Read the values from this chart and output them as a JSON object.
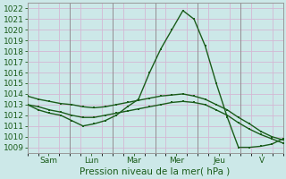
{
  "bg_color": "#cce8e8",
  "grid_color": "#d4b8d4",
  "line_color": "#1a5c1a",
  "ylim": [
    1008.5,
    1022.5
  ],
  "yticks": [
    1009,
    1010,
    1011,
    1012,
    1013,
    1014,
    1015,
    1016,
    1017,
    1018,
    1019,
    1020,
    1021,
    1022
  ],
  "xlabel": "Pression niveau de la mer( hPa )",
  "xlabel_fontsize": 7.5,
  "day_labels": [
    "Sam",
    "Lun",
    "Mar",
    "Mer",
    "Jeu",
    "V"
  ],
  "tick_fontsize": 6.5,
  "marker_size": 2.0,
  "line_width": 1.0,
  "line1_y": [
    1013.0,
    1012.5,
    1012.2,
    1012.0,
    1011.5,
    1011.0,
    1011.2,
    1011.5,
    1012.0,
    1012.8,
    1013.5,
    1016.0,
    1018.2,
    1020.0,
    1021.8,
    1021.0,
    1018.5,
    1015.0,
    1011.8,
    1009.0,
    1009.0,
    1009.1,
    1009.3,
    1009.8
  ],
  "line2_y": [
    1013.8,
    1013.5,
    1013.3,
    1013.1,
    1013.0,
    1012.8,
    1012.7,
    1012.8,
    1013.0,
    1013.2,
    1013.4,
    1013.6,
    1013.8,
    1013.9,
    1014.0,
    1013.8,
    1013.5,
    1013.0,
    1012.5,
    1011.8,
    1011.2,
    1010.5,
    1010.0,
    1009.7
  ],
  "line3_y": [
    1013.0,
    1012.8,
    1012.5,
    1012.3,
    1012.0,
    1011.8,
    1011.8,
    1012.0,
    1012.2,
    1012.4,
    1012.6,
    1012.8,
    1013.0,
    1013.2,
    1013.3,
    1013.2,
    1013.0,
    1012.5,
    1012.0,
    1011.3,
    1010.7,
    1010.2,
    1009.8,
    1009.4
  ]
}
